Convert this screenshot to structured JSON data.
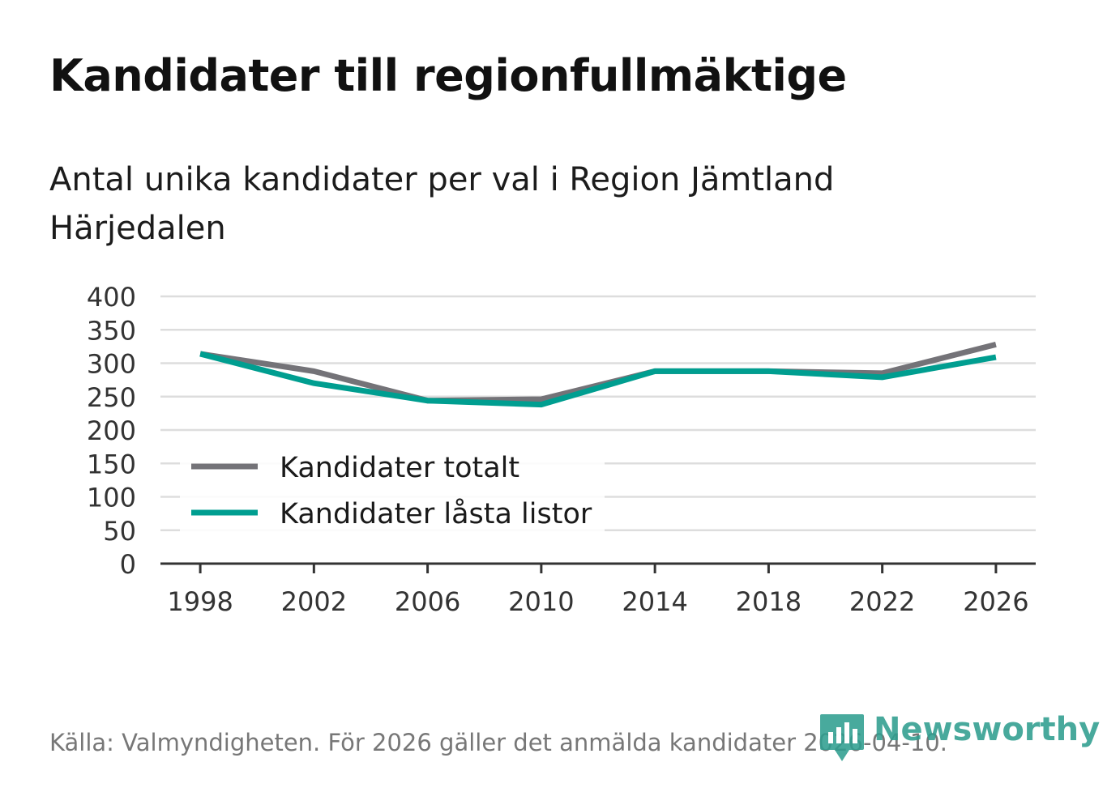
{
  "title": "Kandidater till regionfullmäktige",
  "subtitle": "Antal unika kandidater per val i Region Jämtland Härjedalen",
  "source": "Källa: Valmyndigheten. För 2026 gäller det anmälda kandidater 2026-04-10.",
  "brand": {
    "name": "Newsworthy",
    "color": "#2f9e8f"
  },
  "colors": {
    "series_totalt": "#747378",
    "series_lasta": "#009e90",
    "grid": "#dddddd",
    "axis": "#333333"
  },
  "chart_data": {
    "type": "line",
    "title": "Kandidater till regionfullmäktige",
    "subtitle": "Antal unika kandidater per val i Region Jämtland Härjedalen",
    "x": [
      1998,
      2002,
      2006,
      2010,
      2014,
      2018,
      2022,
      2026
    ],
    "x_tick_labels": [
      "1998",
      "2002",
      "2006",
      "2010",
      "2014",
      "2018",
      "2022",
      "2026"
    ],
    "y_tick_labels": [
      "0",
      "50",
      "100",
      "150",
      "200",
      "250",
      "300",
      "350",
      "400"
    ],
    "y_ticks": [
      0,
      50,
      100,
      150,
      200,
      250,
      300,
      350,
      400
    ],
    "ylim": [
      0,
      400
    ],
    "xlim": [
      1996.6,
      2027.4
    ],
    "grid": true,
    "legend_position": "bottom-left",
    "series": [
      {
        "name": "Kandidater totalt",
        "color": "#747378",
        "values": [
          314,
          288,
          244,
          246,
          288,
          288,
          285,
          328
        ]
      },
      {
        "name": "Kandidater låsta listor",
        "color": "#009e90",
        "values": [
          314,
          270,
          244,
          238,
          288,
          288,
          279,
          309
        ]
      }
    ]
  }
}
